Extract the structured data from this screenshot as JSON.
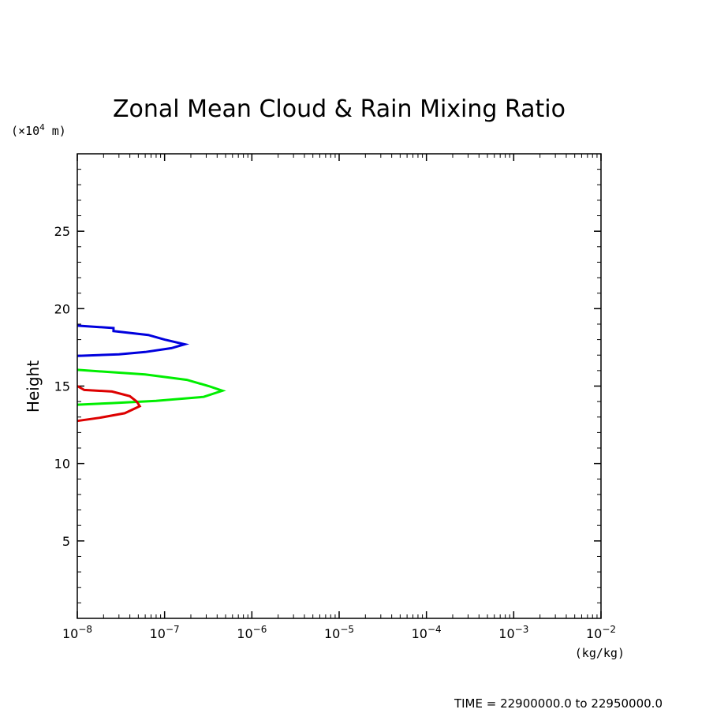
{
  "chart_data": {
    "type": "line",
    "title": "Zonal Mean Cloud & Rain Mixing Ratio",
    "ylabel": "Height",
    "y_unit_prefix": "(×10",
    "y_unit_exp": "4",
    "y_unit_suffix": " m)",
    "x_unit": "(kg/kg)",
    "x_scale": "log",
    "xlim": [
      1e-08,
      0.01
    ],
    "ylim": [
      0,
      30
    ],
    "x_ticks": [
      {
        "value": 1e-08,
        "base": "10",
        "exp": "−8"
      },
      {
        "value": 1e-07,
        "base": "10",
        "exp": "−7"
      },
      {
        "value": 1e-06,
        "base": "10",
        "exp": "−6"
      },
      {
        "value": 1e-05,
        "base": "10",
        "exp": "−5"
      },
      {
        "value": 0.0001,
        "base": "10",
        "exp": "−4"
      },
      {
        "value": 0.001,
        "base": "10",
        "exp": "−3"
      },
      {
        "value": 0.01,
        "base": "10",
        "exp": "−2"
      }
    ],
    "y_ticks": [
      5,
      10,
      15,
      20,
      25
    ],
    "grid": false,
    "time_label": "TIME = 22900000.0 to 22950000.0",
    "series": [
      {
        "color": "#0000dd",
        "points": [
          [
            1e-08,
            18.9
          ],
          [
            2.6e-08,
            18.75
          ],
          [
            2.6e-08,
            18.55
          ],
          [
            6.5e-08,
            18.3
          ],
          [
            1e-07,
            18.0
          ],
          [
            1.7e-07,
            17.7
          ],
          [
            1.2e-07,
            17.45
          ],
          [
            6e-08,
            17.2
          ],
          [
            3e-08,
            17.05
          ],
          [
            1e-08,
            16.95
          ]
        ]
      },
      {
        "color": "#00ee00",
        "points": [
          [
            1e-08,
            16.05
          ],
          [
            6e-08,
            15.75
          ],
          [
            1.8e-07,
            15.4
          ],
          [
            3.2e-07,
            15.0
          ],
          [
            4.6e-07,
            14.7
          ],
          [
            2.8e-07,
            14.3
          ],
          [
            8e-08,
            14.05
          ],
          [
            2.5e-08,
            13.9
          ],
          [
            1e-08,
            13.8
          ]
        ]
      },
      {
        "color": "#dd0000",
        "points": [
          [
            1e-08,
            15.0
          ],
          [
            1.2e-08,
            14.75
          ],
          [
            2.5e-08,
            14.65
          ],
          [
            4e-08,
            14.35
          ],
          [
            4.8e-08,
            14.0
          ],
          [
            5.2e-08,
            13.7
          ],
          [
            3.5e-08,
            13.25
          ],
          [
            1.8e-08,
            12.95
          ],
          [
            1e-08,
            12.75
          ]
        ]
      }
    ]
  }
}
